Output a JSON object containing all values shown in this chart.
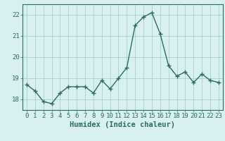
{
  "x": [
    0,
    1,
    2,
    3,
    4,
    5,
    6,
    7,
    8,
    9,
    10,
    11,
    12,
    13,
    14,
    15,
    16,
    17,
    18,
    19,
    20,
    21,
    22,
    23
  ],
  "y": [
    18.7,
    18.4,
    17.9,
    17.8,
    18.3,
    18.6,
    18.6,
    18.6,
    18.3,
    18.9,
    18.5,
    19.0,
    19.5,
    21.5,
    21.9,
    22.1,
    21.1,
    19.6,
    19.1,
    19.3,
    18.8,
    19.2,
    18.9,
    18.8
  ],
  "line_color": "#2d6b63",
  "marker": "+",
  "marker_size": 4,
  "marker_lw": 1.0,
  "line_width": 1.0,
  "bg_color": "#d8f0f0",
  "grid_color": "#aacfcf",
  "xlabel": "Humidex (Indice chaleur)",
  "ylim": [
    17.5,
    22.5
  ],
  "xlim": [
    -0.5,
    23.5
  ],
  "yticks": [
    18,
    19,
    20,
    21,
    22
  ],
  "xticks": [
    0,
    1,
    2,
    3,
    4,
    5,
    6,
    7,
    8,
    9,
    10,
    11,
    12,
    13,
    14,
    15,
    16,
    17,
    18,
    19,
    20,
    21,
    22,
    23
  ],
  "tick_label_size": 6.5,
  "xlabel_size": 7.5,
  "axis_color": "#2d6b63"
}
